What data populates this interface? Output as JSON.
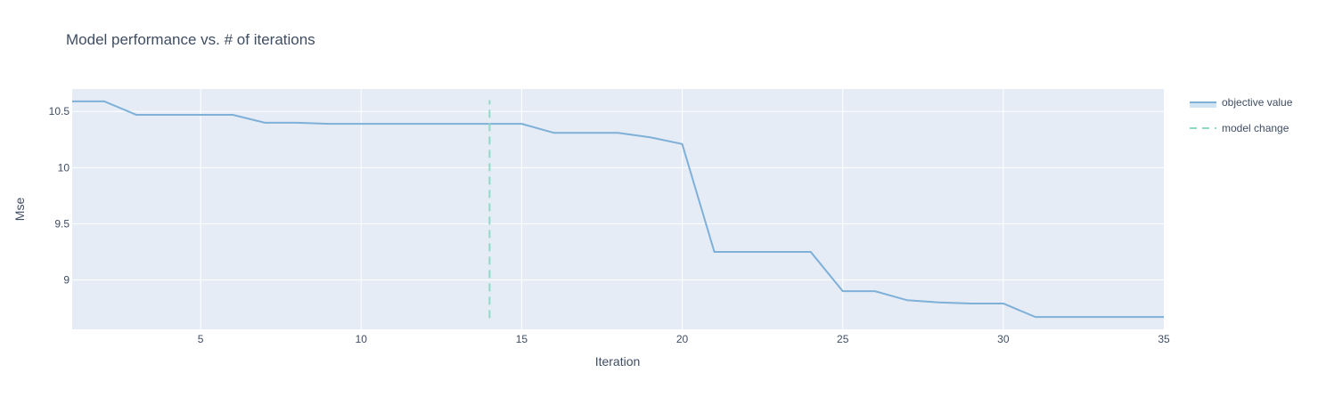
{
  "chart_data": {
    "type": "line",
    "title": "Model performance vs. # of iterations",
    "xlabel": "Iteration",
    "ylabel": "Mse",
    "xlim": [
      1,
      35
    ],
    "ylim": [
      8.56,
      10.7
    ],
    "xticks": [
      5,
      10,
      15,
      20,
      25,
      30,
      35
    ],
    "yticks": [
      9,
      9.5,
      10,
      10.5
    ],
    "ytick_labels": [
      "9",
      "9.5",
      "10",
      "10.5"
    ],
    "grid": true,
    "legend_position": "top-right",
    "series": [
      {
        "name": "objective value",
        "color": "#7fb0d8",
        "style": "solid",
        "x": [
          1,
          2,
          3,
          4,
          5,
          6,
          7,
          8,
          9,
          10,
          11,
          12,
          13,
          14,
          15,
          16,
          17,
          18,
          19,
          20,
          21,
          22,
          23,
          24,
          25,
          26,
          27,
          28,
          29,
          30,
          31,
          32,
          33,
          34,
          35
        ],
        "y": [
          10.59,
          10.59,
          10.47,
          10.47,
          10.47,
          10.47,
          10.4,
          10.4,
          10.39,
          10.39,
          10.39,
          10.39,
          10.39,
          10.39,
          10.39,
          10.31,
          10.31,
          10.31,
          10.27,
          10.21,
          9.25,
          9.25,
          9.25,
          9.25,
          8.9,
          8.9,
          8.82,
          8.8,
          8.79,
          8.79,
          8.67,
          8.67,
          8.67,
          8.67,
          8.67
        ]
      },
      {
        "name": "model change",
        "color": "#8fdac7",
        "style": "dashed",
        "x": [
          14,
          14
        ],
        "y": [
          8.66,
          10.6
        ]
      }
    ]
  }
}
